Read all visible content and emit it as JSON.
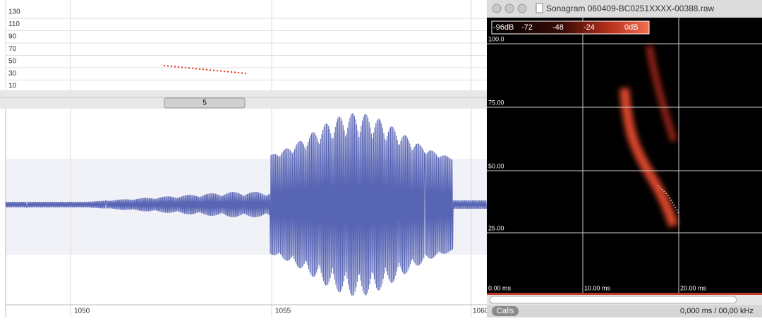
{
  "top_plot": {
    "y_labels": [
      "130",
      "110",
      "90",
      "70",
      "50",
      "30",
      "10"
    ]
  },
  "scroller": {
    "label": "5"
  },
  "waveform": {
    "x_labels": [
      "1050",
      "1055",
      "1060"
    ]
  },
  "sonagram_window": {
    "title": "Sonagram 060409-BC0251XXXX-00388.raw",
    "color_scale": [
      "-96dB",
      "-72",
      "-48",
      "-24",
      "0dB"
    ],
    "y_labels": [
      "100.0",
      "75.00",
      "50.00",
      "25.00"
    ],
    "x_labels": [
      "0.00 ms",
      "10.00 ms",
      "20.00 ms"
    ],
    "calls_button": "Calls",
    "readout": "0,000 ms /  00,00 kHz"
  }
}
